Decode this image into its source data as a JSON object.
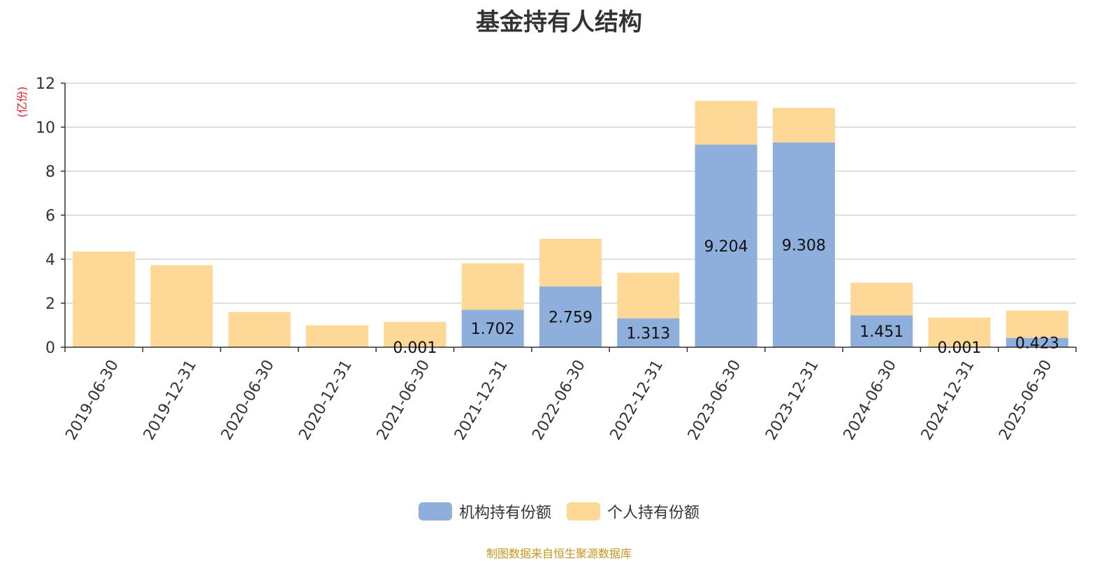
{
  "title": "基金持有人结构",
  "footer": "制图数据来自恒生聚源数据库",
  "colors": {
    "institution": "#8eaedc",
    "individual": "#fed896",
    "unit_label": "#e02020",
    "axis": "#333333",
    "grid": "#cccccc"
  },
  "chart_data": {
    "type": "bar",
    "stacked": true,
    "title": "基金持有人结构",
    "ylabel": "(亿份)",
    "ylim": [
      0,
      12
    ],
    "yticks": [
      0,
      2,
      4,
      6,
      8,
      10,
      12
    ],
    "grid": true,
    "legend_position": "bottom",
    "categories": [
      "2019-06-30",
      "2019-12-31",
      "2020-06-30",
      "2020-12-31",
      "2021-06-30",
      "2021-12-31",
      "2022-06-30",
      "2022-12-31",
      "2023-06-30",
      "2023-12-31",
      "2024-06-30",
      "2024-12-31",
      "2025-06-30"
    ],
    "series": [
      {
        "name": "机构持有份额",
        "color": "#8eaedc",
        "values": [
          0,
          0,
          0,
          0,
          0.001,
          1.702,
          2.759,
          1.313,
          9.204,
          9.308,
          1.451,
          0.001,
          0.423
        ],
        "labels": [
          "",
          "",
          "",
          "",
          "0.001",
          "1.702",
          "2.759",
          "1.313",
          "9.204",
          "9.308",
          "1.451",
          "0.001",
          "0.423"
        ]
      },
      {
        "name": "个人持有份额",
        "color": "#fed896",
        "values": [
          4.35,
          3.73,
          1.6,
          1.0,
          1.15,
          2.11,
          2.17,
          2.07,
          1.99,
          1.57,
          1.48,
          1.35,
          1.24
        ]
      }
    ]
  }
}
